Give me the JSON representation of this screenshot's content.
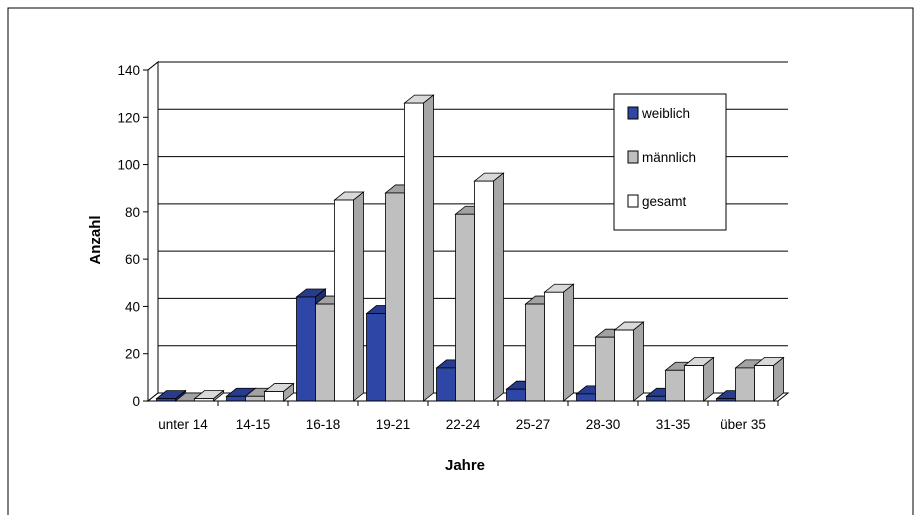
{
  "chart_data": {
    "type": "bar",
    "style": "3d-clustered-column",
    "title": "",
    "xlabel": "Jahre",
    "ylabel": "Anzahl",
    "ylim": [
      0,
      140
    ],
    "yticks": [
      0,
      20,
      40,
      60,
      80,
      100,
      120,
      140
    ],
    "grid": true,
    "legend_position": "top-right",
    "categories": [
      "unter 14",
      "14-15",
      "16-18",
      "19-21",
      "22-24",
      "25-27",
      "28-30",
      "31-35",
      "über 35"
    ],
    "series": [
      {
        "name": "weiblich",
        "color": "#2e47a6",
        "values": [
          1,
          2,
          44,
          37,
          14,
          5,
          3,
          2,
          1
        ]
      },
      {
        "name": "männlich",
        "color": "#bfbfbf",
        "values": [
          0,
          2,
          41,
          88,
          79,
          41,
          27,
          13,
          14
        ]
      },
      {
        "name": "gesamt",
        "color": "#ffffff",
        "values": [
          1,
          4,
          85,
          126,
          93,
          46,
          30,
          15,
          15
        ]
      }
    ]
  }
}
